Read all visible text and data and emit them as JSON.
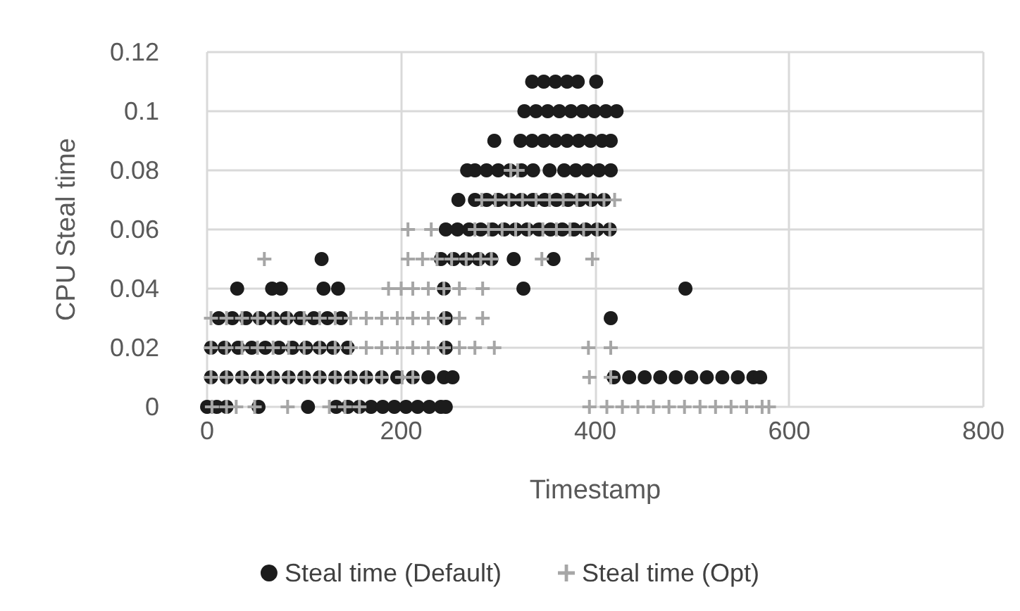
{
  "chart_data": {
    "type": "scatter",
    "xlabel": "Timestamp",
    "ylabel": "CPU Steal time",
    "xlim": [
      0,
      800
    ],
    "xticks": [
      0,
      200,
      400,
      600,
      800
    ],
    "ylim": [
      0,
      0.12
    ],
    "yticks": [
      0,
      0.02,
      0.04,
      0.06,
      0.08,
      0.1,
      0.12
    ],
    "grid": true,
    "legend": "bottom",
    "series": [
      {
        "name": "Steal time (Default)",
        "color": "#1c1c1c",
        "marker": "circle",
        "x": [
          0,
          10,
          20,
          53,
          104,
          133,
          145,
          157,
          169,
          181,
          193,
          205,
          217,
          229,
          241,
          246,
          4,
          20,
          36,
          52,
          68,
          84,
          100,
          116,
          132,
          148,
          164,
          180,
          196,
          212,
          228,
          244,
          253,
          419,
          435,
          451,
          467,
          483,
          499,
          515,
          531,
          547,
          563,
          570,
          4,
          18,
          32,
          46,
          60,
          74,
          88,
          102,
          116,
          130,
          145,
          246,
          12,
          26,
          40,
          54,
          68,
          82,
          96,
          110,
          124,
          138,
          246,
          416,
          31,
          67,
          76,
          120,
          135,
          244,
          326,
          493,
          118,
          241,
          254,
          267,
          280,
          293,
          316,
          357,
          246,
          258,
          270,
          282,
          294,
          306,
          318,
          330,
          342,
          354,
          366,
          378,
          390,
          402,
          415,
          259,
          276,
          288,
          300,
          312,
          324,
          336,
          348,
          360,
          372,
          384,
          396,
          409,
          268,
          276,
          288,
          300,
          312,
          324,
          336,
          353,
          368,
          380,
          392,
          404,
          416,
          296,
          323,
          335,
          347,
          359,
          371,
          383,
          395,
          407,
          416,
          327,
          339,
          351,
          363,
          375,
          387,
          399,
          411,
          422,
          335,
          347,
          359,
          371,
          382,
          401
        ],
        "values": [
          0,
          0,
          0,
          0,
          0,
          0,
          0,
          0,
          0,
          0,
          0,
          0,
          0,
          0,
          0,
          0,
          0.01,
          0.01,
          0.01,
          0.01,
          0.01,
          0.01,
          0.01,
          0.01,
          0.01,
          0.01,
          0.01,
          0.01,
          0.01,
          0.01,
          0.01,
          0.01,
          0.01,
          0.01,
          0.01,
          0.01,
          0.01,
          0.01,
          0.01,
          0.01,
          0.01,
          0.01,
          0.01,
          0.01,
          0.02,
          0.02,
          0.02,
          0.02,
          0.02,
          0.02,
          0.02,
          0.02,
          0.02,
          0.02,
          0.02,
          0.02,
          0.03,
          0.03,
          0.03,
          0.03,
          0.03,
          0.03,
          0.03,
          0.03,
          0.03,
          0.03,
          0.03,
          0.03,
          0.04,
          0.04,
          0.04,
          0.04,
          0.04,
          0.04,
          0.04,
          0.04,
          0.05,
          0.05,
          0.05,
          0.05,
          0.05,
          0.05,
          0.05,
          0.05,
          0.06,
          0.06,
          0.06,
          0.06,
          0.06,
          0.06,
          0.06,
          0.06,
          0.06,
          0.06,
          0.06,
          0.06,
          0.06,
          0.06,
          0.06,
          0.07,
          0.07,
          0.07,
          0.07,
          0.07,
          0.07,
          0.07,
          0.07,
          0.07,
          0.07,
          0.07,
          0.07,
          0.07,
          0.08,
          0.08,
          0.08,
          0.08,
          0.08,
          0.08,
          0.08,
          0.08,
          0.08,
          0.08,
          0.08,
          0.08,
          0.08,
          0.09,
          0.09,
          0.09,
          0.09,
          0.09,
          0.09,
          0.09,
          0.09,
          0.09,
          0.09,
          0.1,
          0.1,
          0.1,
          0.1,
          0.1,
          0.1,
          0.1,
          0.1,
          0.1,
          0.11,
          0.11,
          0.11,
          0.11,
          0.11,
          0.11
        ]
      },
      {
        "name": "Steal time (Opt)",
        "color": "#a6a6a6",
        "marker": "cross",
        "x": [
          5,
          20,
          30,
          49,
          83,
          126,
          142,
          157,
          394,
          412,
          428,
          444,
          460,
          476,
          492,
          508,
          524,
          540,
          556,
          572,
          579,
          4,
          20,
          36,
          52,
          68,
          84,
          100,
          116,
          132,
          148,
          164,
          180,
          201,
          212,
          394,
          416,
          4,
          20,
          36,
          52,
          68,
          84,
          100,
          116,
          132,
          148,
          164,
          180,
          196,
          212,
          228,
          244,
          260,
          276,
          296,
          393,
          416,
          4,
          20,
          36,
          52,
          68,
          84,
          100,
          116,
          132,
          148,
          164,
          180,
          196,
          212,
          228,
          244,
          260,
          284,
          187,
          200,
          212,
          228,
          244,
          260,
          284,
          59,
          207,
          222,
          237,
          252,
          267,
          282,
          293,
          345,
          397,
          207,
          231,
          276,
          290,
          304,
          318,
          332,
          346,
          360,
          374,
          388,
          402,
          415,
          283,
          297,
          311,
          325,
          339,
          353,
          367,
          381,
          395,
          409,
          420,
          313,
          320
        ],
        "values": [
          0,
          0,
          0,
          0,
          0,
          0,
          0,
          0,
          0,
          0,
          0,
          0,
          0,
          0,
          0,
          0,
          0,
          0,
          0,
          0,
          0,
          0.01,
          0.01,
          0.01,
          0.01,
          0.01,
          0.01,
          0.01,
          0.01,
          0.01,
          0.01,
          0.01,
          0.01,
          0.01,
          0.01,
          0.01,
          0.01,
          0.02,
          0.02,
          0.02,
          0.02,
          0.02,
          0.02,
          0.02,
          0.02,
          0.02,
          0.02,
          0.02,
          0.02,
          0.02,
          0.02,
          0.02,
          0.02,
          0.02,
          0.02,
          0.02,
          0.02,
          0.02,
          0.03,
          0.03,
          0.03,
          0.03,
          0.03,
          0.03,
          0.03,
          0.03,
          0.03,
          0.03,
          0.03,
          0.03,
          0.03,
          0.03,
          0.03,
          0.03,
          0.03,
          0.03,
          0.04,
          0.04,
          0.04,
          0.04,
          0.04,
          0.04,
          0.04,
          0.05,
          0.05,
          0.05,
          0.05,
          0.05,
          0.05,
          0.05,
          0.05,
          0.05,
          0.05,
          0.06,
          0.06,
          0.06,
          0.06,
          0.06,
          0.06,
          0.06,
          0.06,
          0.06,
          0.06,
          0.06,
          0.06,
          0.06,
          0.07,
          0.07,
          0.07,
          0.07,
          0.07,
          0.07,
          0.07,
          0.07,
          0.07,
          0.07,
          0.07,
          0.08,
          0.08
        ]
      }
    ]
  }
}
